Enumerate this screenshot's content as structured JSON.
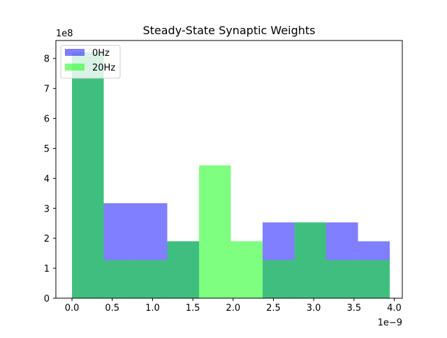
{
  "chart_data": {
    "type": "bar",
    "title": "Steady-State Synaptic Weights",
    "xlabel": "",
    "ylabel": "",
    "x_multiplier": "1e−9",
    "y_multiplier": "1e8",
    "xlim": [
      -0.2,
      4.1
    ],
    "ylim": [
      0,
      8.6
    ],
    "x_ticks": [
      "0.0",
      "0.5",
      "1.0",
      "1.5",
      "2.0",
      "2.5",
      "3.0",
      "3.5",
      "4.0"
    ],
    "y_ticks": [
      "0",
      "1",
      "2",
      "3",
      "4",
      "5",
      "6",
      "7",
      "8"
    ],
    "bin_edges": [
      0.0,
      0.394,
      0.789,
      1.183,
      1.578,
      1.972,
      2.366,
      2.761,
      3.155,
      3.55,
      3.944
    ],
    "legend_position": "upper-left",
    "grid": false,
    "series": [
      {
        "name": "0Hz",
        "color": "#0000ff",
        "opacity": 0.5,
        "values": [
          8.2,
          3.17,
          3.17,
          1.9,
          0.0,
          0.0,
          2.53,
          2.53,
          2.53,
          1.9
        ]
      },
      {
        "name": "20Hz",
        "color": "#00ff00",
        "opacity": 0.5,
        "values": [
          8.2,
          1.27,
          1.27,
          1.9,
          4.43,
          1.9,
          1.27,
          2.53,
          1.27,
          1.27
        ]
      }
    ]
  }
}
